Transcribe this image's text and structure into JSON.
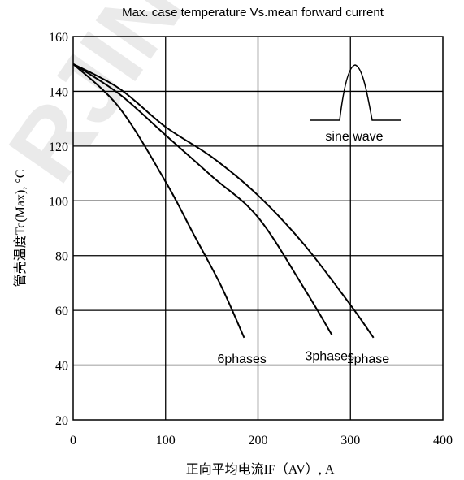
{
  "chart_data": {
    "type": "line",
    "title": "Max. case temperature Vs.mean forward current",
    "xlabel": "正向平均电流IF（AV）, A",
    "ylabel": "管壳温度Tc(Max), °C",
    "xlim": [
      0,
      400
    ],
    "ylim": [
      20,
      160
    ],
    "xticks": [
      0,
      100,
      200,
      300,
      400
    ],
    "yticks": [
      20,
      40,
      60,
      80,
      100,
      120,
      140,
      160
    ],
    "grid": true,
    "series": [
      {
        "name": "6phases",
        "x": [
          0,
          50,
          100,
          130,
          160,
          185
        ],
        "y": [
          150,
          134,
          107,
          88,
          69,
          50
        ]
      },
      {
        "name": "3phases",
        "x": [
          0,
          50,
          100,
          150,
          200,
          250,
          280
        ],
        "y": [
          150,
          139,
          124,
          109,
          94,
          68,
          51
        ]
      },
      {
        "name": "1phase",
        "x": [
          0,
          50,
          100,
          150,
          200,
          250,
          300,
          325
        ],
        "y": [
          150,
          141,
          127,
          116,
          102,
          84,
          62,
          50
        ]
      }
    ],
    "inset_label": "sine wave"
  },
  "watermark_text": "RJIN"
}
